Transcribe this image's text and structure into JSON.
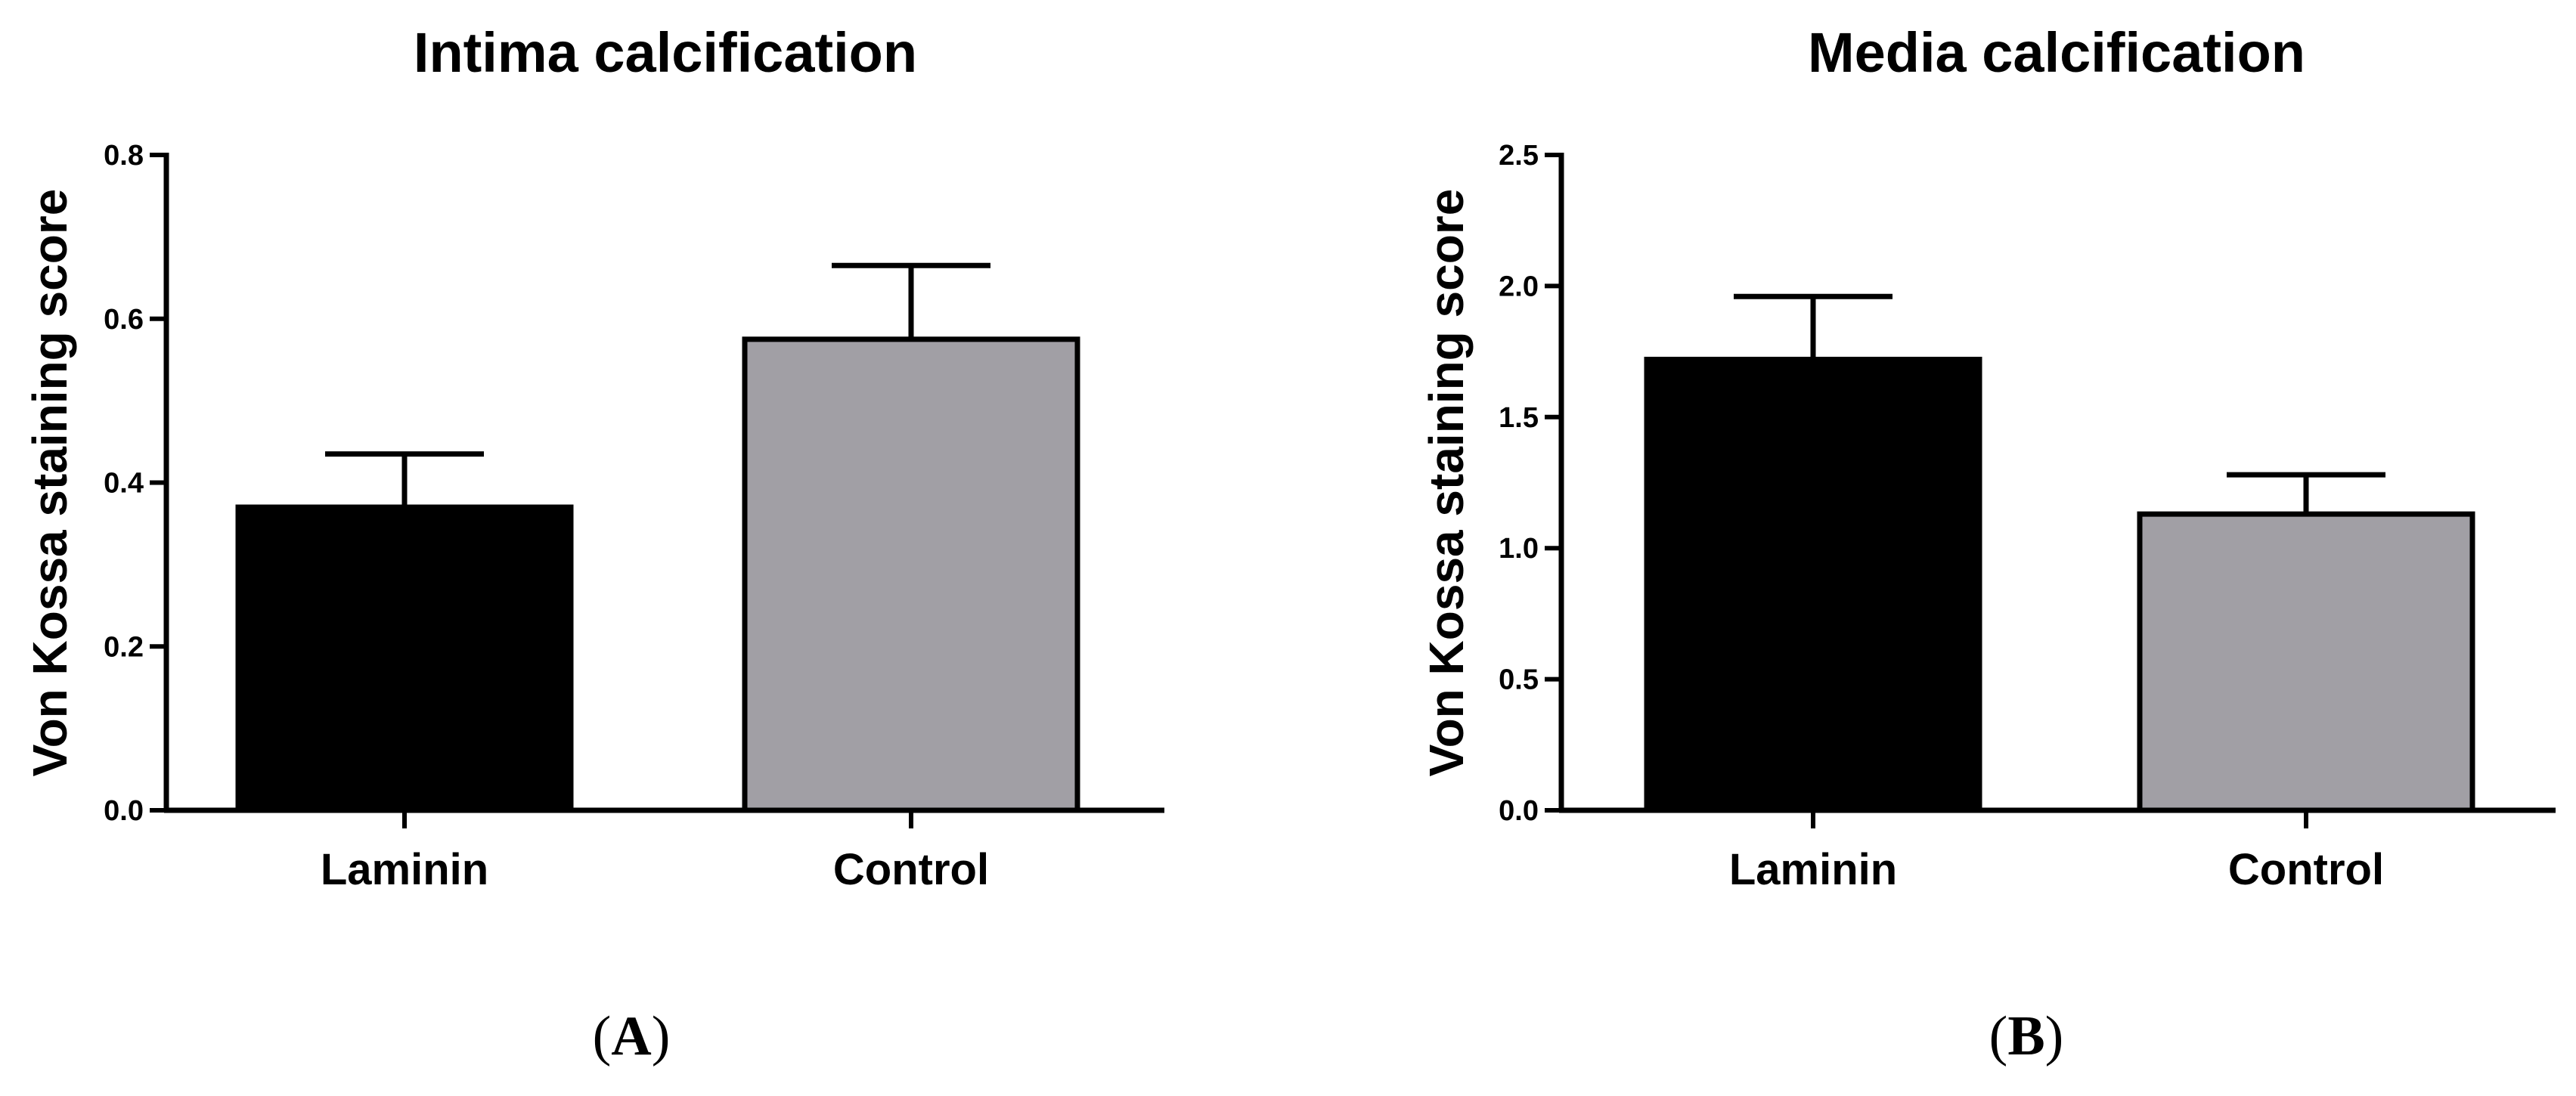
{
  "chart_data": [
    {
      "id": "A",
      "type": "bar",
      "title": "Intima calcification",
      "xlabel": "",
      "ylabel": "Von Kossa staining score",
      "categories": [
        "Laminin",
        "Control"
      ],
      "values": [
        0.37,
        0.575
      ],
      "errors": [
        0.065,
        0.09
      ],
      "colors": [
        "#000000",
        "#a19fa5"
      ],
      "ylim": [
        0,
        0.8
      ],
      "yticks": [
        0.0,
        0.2,
        0.4,
        0.6,
        0.8
      ],
      "ytick_labels": [
        "0.0",
        "0.2",
        "0.4",
        "0.6",
        "0.8"
      ],
      "grid": false,
      "legend": false,
      "panel_label": "A"
    },
    {
      "id": "B",
      "type": "bar",
      "title": "Media calcification",
      "xlabel": "",
      "ylabel": "Von Kossa staining score",
      "categories": [
        "Laminin",
        "Control"
      ],
      "values": [
        1.72,
        1.13
      ],
      "errors": [
        0.24,
        0.15
      ],
      "colors": [
        "#000000",
        "#a19fa5"
      ],
      "ylim": [
        0,
        2.5
      ],
      "yticks": [
        0.0,
        0.5,
        1.0,
        1.5,
        2.0,
        2.5
      ],
      "ytick_labels": [
        "0.0",
        "0.5",
        "1.0",
        "1.5",
        "2.0",
        "2.5"
      ],
      "grid": false,
      "legend": false,
      "panel_label": "B"
    }
  ]
}
